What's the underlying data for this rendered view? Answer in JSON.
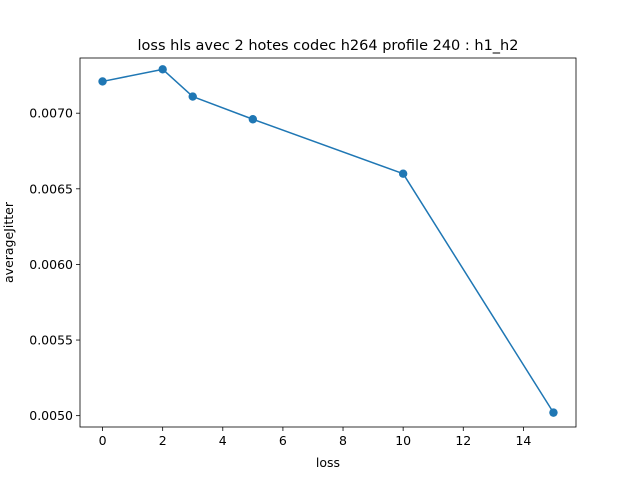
{
  "chart_data": {
    "type": "line",
    "title": "loss hls avec 2 hotes codec h264 profile 240 : h1_h2",
    "xlabel": "loss",
    "ylabel": "averageJitter",
    "x": [
      0,
      2,
      3,
      5,
      10,
      15
    ],
    "series": [
      {
        "values": [
          0.00721,
          0.00729,
          0.00711,
          0.00696,
          0.0066,
          0.00502
        ],
        "color": "#1f77b4",
        "marker": "circle"
      }
    ],
    "xlim": [
      -0.75,
      15.75
    ],
    "ylim": [
      0.004925,
      0.007365
    ],
    "xticks": [
      0,
      2,
      4,
      6,
      8,
      10,
      12,
      14
    ],
    "xtick_labels": [
      "0",
      "2",
      "4",
      "6",
      "8",
      "10",
      "12",
      "14"
    ],
    "yticks": [
      0.005,
      0.0055,
      0.006,
      0.0065,
      0.007
    ],
    "ytick_labels": [
      "0.0050",
      "0.0055",
      "0.0060",
      "0.0065",
      "0.0070"
    ],
    "grid": false,
    "legend": "none"
  }
}
